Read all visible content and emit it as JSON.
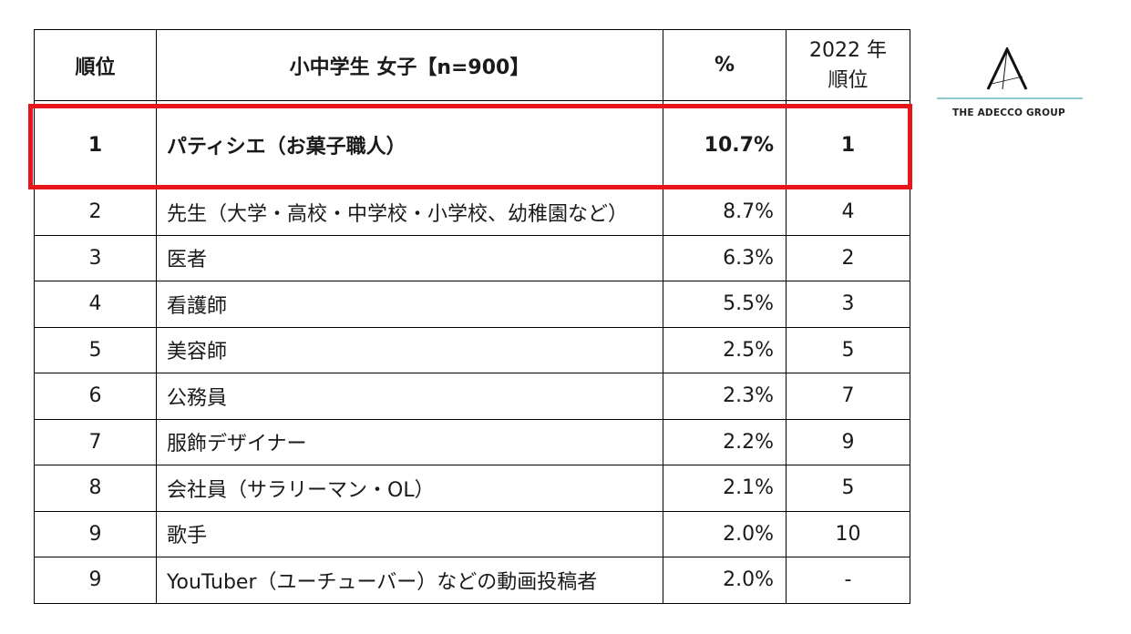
{
  "table": {
    "headers": {
      "rank": "順位",
      "job": "小中学生 女子【n=900】",
      "percent": "%",
      "prev_line1": "2022 年",
      "prev_line2": "順位"
    },
    "rows": [
      {
        "rank": "1",
        "job": "パティシエ（お菓子職人）",
        "percent": "10.7%",
        "prev": "1",
        "highlighted": true
      },
      {
        "rank": "2",
        "job": "先生（大学・高校・中学校・小学校、幼稚園など）",
        "percent": "8.7%",
        "prev": "4"
      },
      {
        "rank": "3",
        "job": "医者",
        "percent": "6.3%",
        "prev": "2"
      },
      {
        "rank": "4",
        "job": "看護師",
        "percent": "5.5%",
        "prev": "3"
      },
      {
        "rank": "5",
        "job": "美容師",
        "percent": "2.5%",
        "prev": "5"
      },
      {
        "rank": "6",
        "job": "公務員",
        "percent": "2.3%",
        "prev": "7"
      },
      {
        "rank": "7",
        "job": "服飾デザイナー",
        "percent": "2.2%",
        "prev": "9"
      },
      {
        "rank": "8",
        "job": "会社員（サラリーマン・OL）",
        "percent": "2.1%",
        "prev": "5"
      },
      {
        "rank": "9",
        "job": "歌手",
        "percent": "2.0%",
        "prev": "10"
      },
      {
        "rank": "9",
        "job": "YouTuber（ユーチューバー）などの動画投稿者",
        "percent": "2.0%",
        "prev": "-"
      }
    ]
  },
  "highlight_color": "#e8161b",
  "logo": {
    "text": "THE ADECCO GROUP",
    "rule_color": "#8fc9cf",
    "icon": "adecco-a-logo-icon"
  }
}
